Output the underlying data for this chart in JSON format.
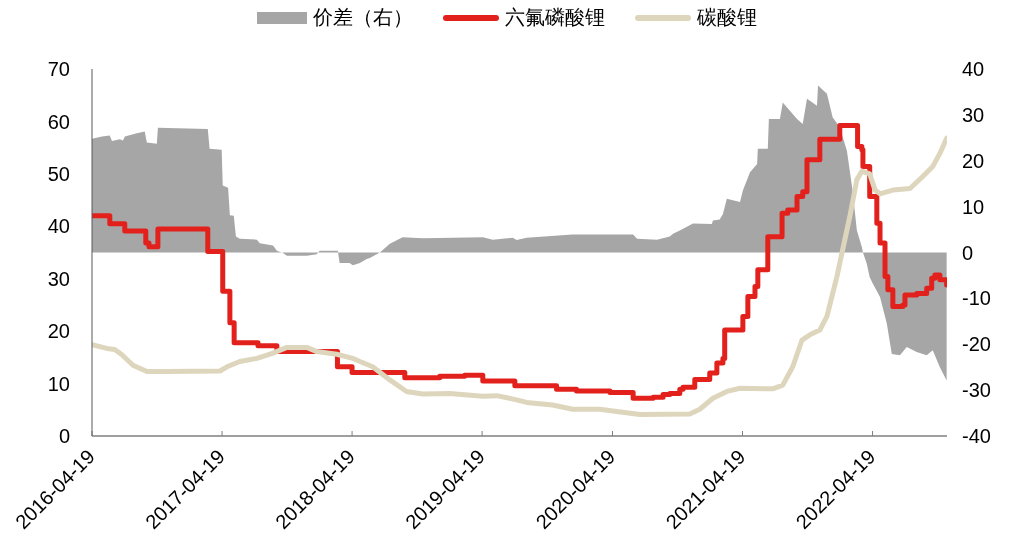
{
  "chart_data": {
    "type": "line",
    "legend": "top",
    "xlim": [
      "2016-04-19",
      "2022-11-14"
    ],
    "xticks": [
      "2016-04-19",
      "2017-04-19",
      "2018-04-19",
      "2019-04-19",
      "2020-04-19",
      "2021-04-19",
      "2022-04-19"
    ],
    "ylim": [
      0,
      70
    ],
    "yticks": [
      0,
      10,
      20,
      30,
      40,
      50,
      60,
      70
    ],
    "y2lim": [
      -40,
      40
    ],
    "y2ticks": [
      -40,
      -30,
      -20,
      -10,
      0,
      10,
      20,
      30,
      40
    ],
    "series": [
      {
        "name": "价差（右）",
        "type": "area",
        "axis": "y2",
        "color": "#a6a6a6",
        "x": [
          "2016-04-19",
          "2016-05-17",
          "2016-06-08",
          "2016-06-14",
          "2016-07-06",
          "2016-07-15",
          "2016-07-20",
          "2016-08-23",
          "2016-09-14",
          "2016-09-20",
          "2016-10-18",
          "2016-10-21",
          "2017-03-10",
          "2017-03-15",
          "2017-04-18",
          "2017-04-21",
          "2017-05-06",
          "2017-05-11",
          "2017-05-22",
          "2017-05-28",
          "2017-06-08",
          "2017-07-26",
          "2017-08-03",
          "2017-09-09",
          "2017-09-20",
          "2017-10-07",
          "2017-10-18",
          "2017-12-13",
          "2018-01-10",
          "2018-01-18",
          "2018-03-10",
          "2018-03-15",
          "2018-04-12",
          "2018-04-21",
          "2018-05-11",
          "2018-05-30",
          "2018-06-08",
          "2018-07-06",
          "2018-08-03",
          "2018-09-08",
          "2018-11-03",
          "2019-04-21",
          "2019-05-19",
          "2019-07-14",
          "2019-07-25",
          "2019-08-22",
          "2019-12-29",
          "2020-06-16",
          "2020-06-27",
          "2020-08-22",
          "2020-09-27",
          "2020-10-06",
          "2020-10-25",
          "2020-12-01",
          "2021-01-23",
          "2021-01-26",
          "2021-02-14",
          "2021-02-23",
          "2021-03-06",
          "2021-04-12",
          "2021-04-20",
          "2021-05-10",
          "2021-05-30",
          "2021-06-01",
          "2021-06-29",
          "2021-07-02",
          "2021-08-02",
          "2021-08-10",
          "2021-09-19",
          "2021-10-05",
          "2021-10-17",
          "2021-11-14",
          "2021-11-17",
          "2021-12-12",
          "2021-12-28",
          "2022-01-17",
          "2022-02-06",
          "2022-02-22",
          "2022-03-06",
          "2022-03-20",
          "2022-03-23",
          "2022-04-03",
          "2022-04-11",
          "2022-04-20",
          "2022-05-10",
          "2022-05-29",
          "2022-06-12",
          "2022-07-05",
          "2022-07-24",
          "2022-08-21",
          "2022-09-18",
          "2022-10-05",
          "2022-10-25",
          "2022-11-13"
        ],
        "values": [
          24.8,
          25.3,
          25.5,
          24.3,
          24.7,
          24.4,
          25.3,
          26.0,
          26.4,
          24.0,
          23.7,
          27.2,
          26.9,
          22.6,
          22.4,
          14.6,
          14.1,
          8.1,
          8.0,
          3.5,
          3.0,
          2.8,
          2.0,
          1.5,
          0.4,
          -0.1,
          -0.7,
          -0.7,
          -0.4,
          0.4,
          0.4,
          -2.3,
          -2.3,
          -2.8,
          -2.3,
          -1.4,
          -1.2,
          0.0,
          1.9,
          3.3,
          3.1,
          3.3,
          2.8,
          3.2,
          2.7,
          3.2,
          3.9,
          3.9,
          3.0,
          2.8,
          3.5,
          4.1,
          4.8,
          6.3,
          6.2,
          7.0,
          7.2,
          8.4,
          11.7,
          11.0,
          13.5,
          17.5,
          19.3,
          22.6,
          22.6,
          29.1,
          29.1,
          32.7,
          29.1,
          28.0,
          33.5,
          32.0,
          36.4,
          34.6,
          29.5,
          27.3,
          22.2,
          13.5,
          4.8,
          1.2,
          0.0,
          -2.5,
          -5.4,
          -6.8,
          -9.7,
          -15.5,
          -22.1,
          -22.4,
          -20.6,
          -21.7,
          -22.4,
          -21.3,
          -25.0,
          -27.9
        ]
      },
      {
        "name": "六氟磷酸锂",
        "type": "step",
        "color": "#e3211c",
        "x": [
          "2016-04-19",
          "2016-06-08",
          "2016-07-20",
          "2016-09-17",
          "2016-09-26",
          "2016-10-21",
          "2017-03-10",
          "2017-04-21",
          "2017-05-11",
          "2017-05-23",
          "2017-07-29",
          "2017-09-20",
          "2018-03-09",
          "2018-04-19",
          "2018-09-14",
          "2018-12-21",
          "2019-03-01",
          "2019-04-21",
          "2019-07-20",
          "2019-11-14",
          "2020-01-09",
          "2020-04-12",
          "2020-06-16",
          "2020-08-11",
          "2020-09-08",
          "2020-09-27",
          "2020-10-25",
          "2020-11-03",
          "2020-12-06",
          "2021-01-17",
          "2021-02-06",
          "2021-02-23",
          "2021-02-28",
          "2021-04-20",
          "2021-05-04",
          "2021-05-24",
          "2021-06-01",
          "2021-06-29",
          "2021-08-08",
          "2021-08-24",
          "2021-09-19",
          "2021-10-05",
          "2021-10-17",
          "2021-11-22",
          "2022-01-17",
          "2022-03-08",
          "2022-03-20",
          "2022-03-23",
          "2022-04-11",
          "2022-05-01",
          "2022-05-10",
          "2022-05-24",
          "2022-06-01",
          "2022-06-15",
          "2022-07-13",
          "2022-07-19",
          "2022-08-21",
          "2022-09-18",
          "2022-10-02",
          "2022-10-11",
          "2022-10-25",
          "2022-11-13"
        ],
        "values": [
          42.0,
          40.5,
          39.1,
          36.8,
          36.1,
          39.5,
          35.2,
          27.6,
          21.6,
          17.8,
          17.2,
          16.1,
          13.2,
          12.1,
          11.1,
          11.4,
          11.6,
          10.5,
          9.6,
          8.9,
          8.6,
          8.3,
          7.2,
          7.4,
          7.9,
          8.1,
          8.9,
          9.3,
          10.8,
          12.0,
          13.9,
          14.8,
          20.2,
          22.8,
          26.6,
          28.5,
          31.7,
          38.0,
          42.5,
          43.1,
          45.7,
          46.6,
          52.7,
          56.6,
          59.2,
          55.2,
          54.6,
          51.4,
          45.7,
          40.6,
          36.8,
          30.4,
          27.9,
          24.7,
          25.0,
          26.9,
          27.2,
          28.2,
          30.1,
          30.7,
          29.8,
          28.8
        ]
      },
      {
        "name": "碳酸锂",
        "color": "#ded5bd",
        "x": [
          "2016-04-19",
          "2016-05-31",
          "2016-06-22",
          "2016-07-12",
          "2016-08-12",
          "2016-09-20",
          "2016-11-15",
          "2017-04-13",
          "2017-05-03",
          "2017-06-08",
          "2017-07-26",
          "2017-09-09",
          "2017-10-18",
          "2017-12-13",
          "2018-01-10",
          "2018-03-07",
          "2018-04-21",
          "2018-05-11",
          "2018-06-16",
          "2018-08-03",
          "2018-09-19",
          "2018-11-03",
          "2019-01-18",
          "2019-04-21",
          "2019-05-30",
          "2019-07-25",
          "2019-08-22",
          "2019-11-03",
          "2019-12-29",
          "2020-03-14",
          "2020-07-05",
          "2020-11-22",
          "2020-12-20",
          "2021-01-26",
          "2021-03-06",
          "2021-04-12",
          "2021-07-13",
          "2021-08-10",
          "2021-09-07",
          "2021-10-03",
          "2021-10-25",
          "2021-11-22",
          "2021-12-12",
          "2022-01-09",
          "2022-01-25",
          "2022-02-14",
          "2022-03-06",
          "2022-03-20",
          "2022-04-11",
          "2022-04-26",
          "2022-05-10",
          "2022-06-15",
          "2022-08-02",
          "2022-09-07",
          "2022-10-05",
          "2022-10-25",
          "2022-11-13"
        ],
        "values": [
          17.4,
          16.7,
          16.5,
          15.5,
          13.5,
          12.3,
          12.3,
          12.4,
          13.2,
          14.2,
          14.8,
          15.8,
          16.9,
          16.9,
          16.1,
          15.6,
          14.8,
          14.2,
          13.2,
          10.7,
          8.5,
          8.0,
          8.1,
          7.6,
          7.7,
          6.9,
          6.4,
          5.9,
          5.1,
          5.1,
          4.1,
          4.2,
          5.1,
          7.2,
          8.5,
          9.1,
          9.0,
          9.7,
          13.2,
          18.3,
          19.3,
          20.2,
          22.8,
          30.4,
          35.5,
          41.8,
          48.9,
          50.5,
          50.0,
          46.9,
          46.2,
          46.9,
          47.2,
          49.5,
          51.4,
          53.9,
          56.8
        ]
      }
    ]
  }
}
